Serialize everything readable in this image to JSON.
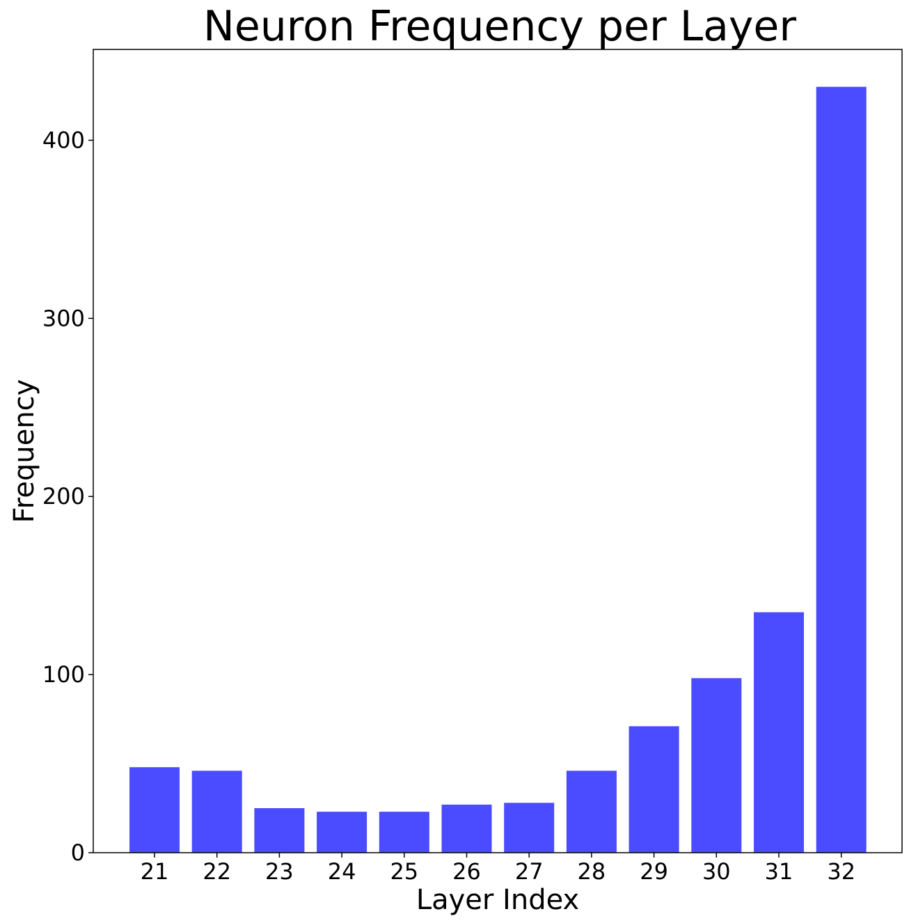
{
  "chart_data": {
    "type": "bar",
    "title": "Neuron Frequency per Layer",
    "xlabel": "Layer Index",
    "ylabel": "Frequency",
    "categories": [
      "21",
      "22",
      "23",
      "24",
      "25",
      "26",
      "27",
      "28",
      "29",
      "30",
      "31",
      "32"
    ],
    "values": [
      48,
      46,
      25,
      23,
      23,
      27,
      28,
      46,
      71,
      98,
      135,
      430
    ],
    "ylim": [
      0,
      451
    ],
    "yticks": [
      0,
      100,
      200,
      300,
      400
    ],
    "grid": false,
    "bar_color": "#4b4bff"
  }
}
